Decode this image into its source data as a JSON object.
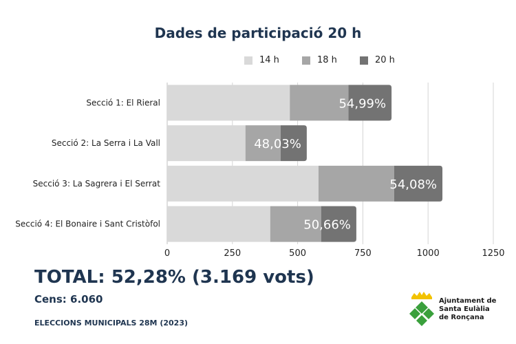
{
  "chart_data": {
    "type": "bar",
    "orientation": "horizontal",
    "stacked": true,
    "title": "Dades de participació 20 h",
    "categories": [
      "Secció 1: El Rieral",
      "Secció 2: La Serra i La Vall",
      "Secció 3: La Sagrera i El Serrat",
      "Secció 4: El Bonaire i Sant Cristòfol"
    ],
    "series": [
      {
        "name": "14 h",
        "color": "#d9d9d9",
        "values": [
          470,
          300,
          580,
          395
        ]
      },
      {
        "name": "18 h",
        "color": "#a6a6a6",
        "values": [
          225,
          135,
          290,
          195
        ]
      },
      {
        "name": "20 h",
        "color": "#737373",
        "values": [
          165,
          100,
          185,
          135
        ]
      }
    ],
    "data_labels": [
      "54,99%",
      "48,03%",
      "54,08%",
      "50,66%"
    ],
    "xlim": [
      0,
      1250
    ],
    "xticks": [
      "0",
      "250",
      "500",
      "750",
      "1000",
      "1250"
    ],
    "grid": true,
    "legend_position": "top"
  },
  "summary": {
    "total": "TOTAL: 52,28% (3.169 vots)",
    "cens": "Cens: 6.060",
    "elections": "ELECCIONS MUNICIPALS 28M (2023)"
  },
  "logo": {
    "line1": "Ajuntament de",
    "line2": "Santa Eulàlia",
    "line3": "de Ronçana",
    "icon": "municipal-shield-icon",
    "colors": {
      "yellow": "#f2c200",
      "green": "#3aa03c"
    }
  }
}
